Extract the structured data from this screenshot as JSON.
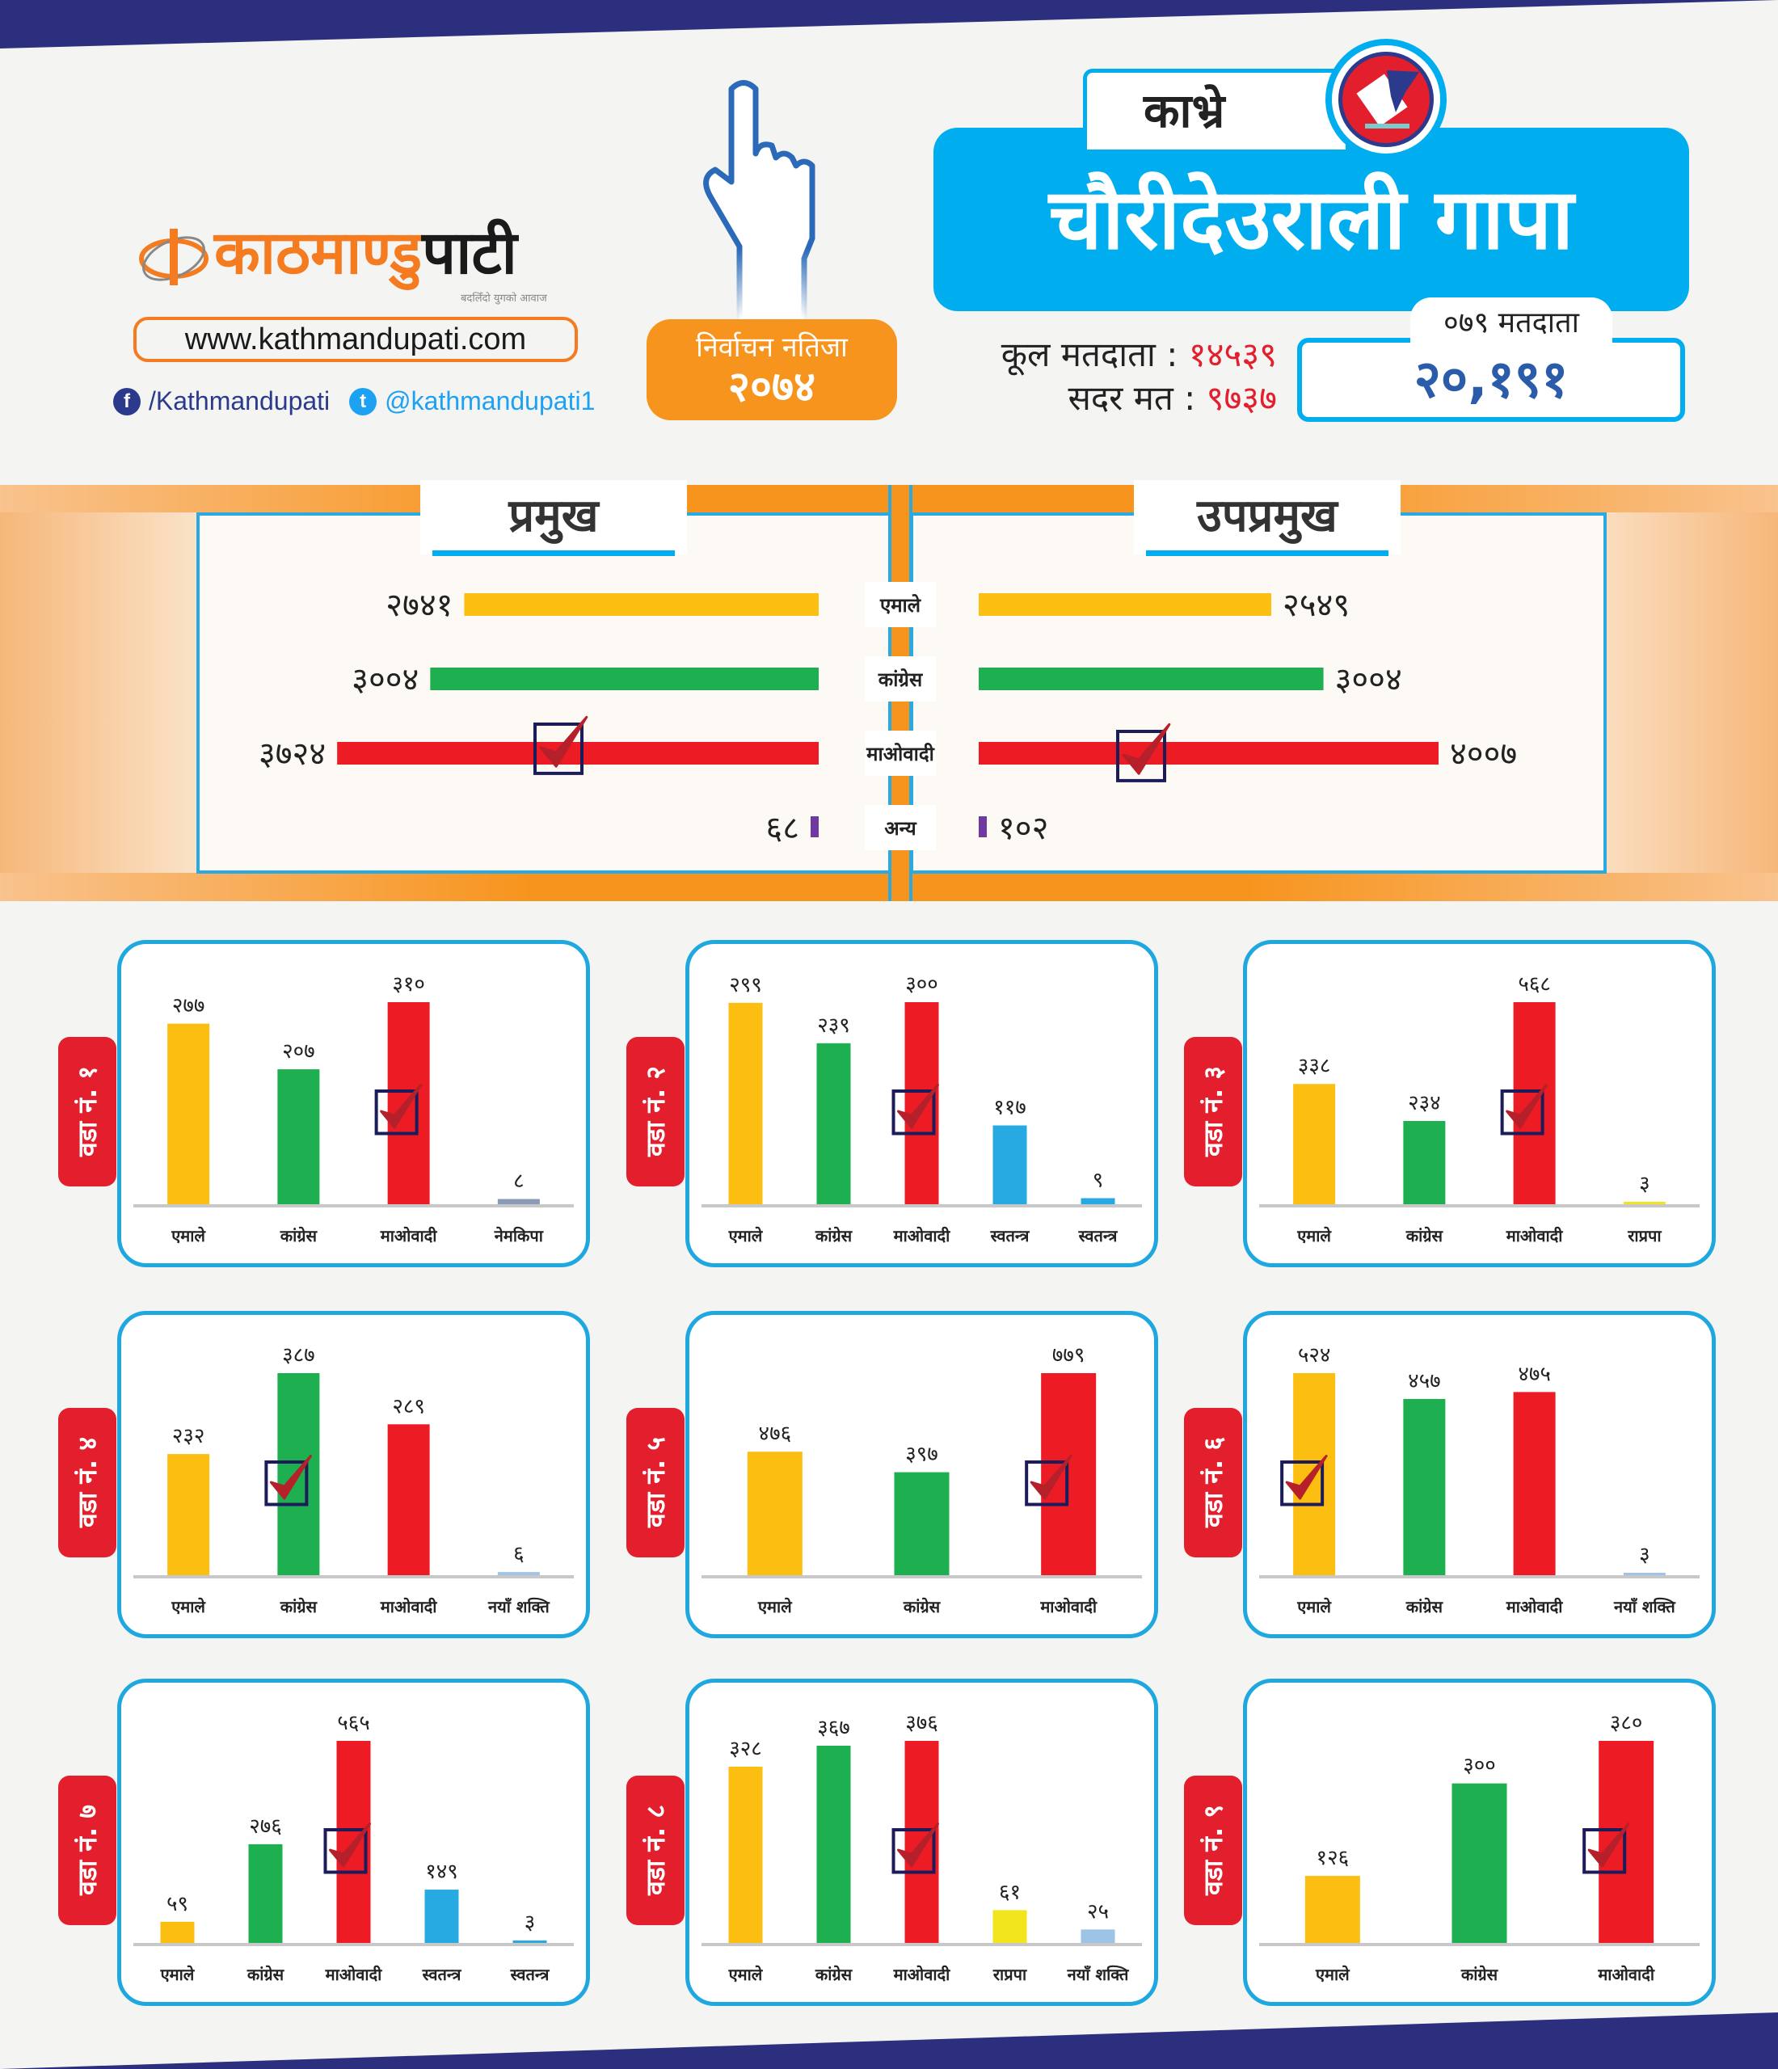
{
  "brand": {
    "logo_main": "काठमाण्डु",
    "logo_accent": "पाटी",
    "tagline": "बदलिँदो युगको आवाज",
    "url": "www.kathmandupati.com",
    "facebook": "/Kathmandupati",
    "twitter": "@kathmandupati1"
  },
  "badge": {
    "line1": "निर्वाचन नतिजा",
    "line2": "२०७४"
  },
  "header": {
    "district": "काभ्रे",
    "municipality": "चौरीदेउराली गापा"
  },
  "stats": {
    "total_label": "कूल मतदाता :",
    "total_value": "१४५३९",
    "cast_label": "सदर मत :",
    "cast_value": "९७३७",
    "voters079_label": "०७९ मतदाता",
    "voters079_value": "२०,१९१"
  },
  "colors": {
    "uml": "#FDBE12",
    "congress": "#1EB050",
    "maoist": "#ED1C24",
    "independent": "#27AAE1",
    "nemkipa": "#8A9BB5",
    "rpp": "#F2E51B",
    "naya_shakti": "#9DC3E6",
    "other": "#6E3AA0",
    "accent": "#00AEEF"
  },
  "chart_data": [
    {
      "type": "bar",
      "orientation": "horizontal",
      "title": "प्रमुख",
      "categories": [
        "एमाले",
        "कांग्रेस",
        "माओवादी",
        "अन्य"
      ],
      "values": [
        2741,
        3004,
        3724,
        68
      ],
      "winner": 2
    },
    {
      "type": "bar",
      "orientation": "horizontal",
      "title": "उपप्रमुख",
      "categories": [
        "एमाले",
        "कांग्रेस",
        "माओवादी",
        "अन्य"
      ],
      "values": [
        2549,
        3004,
        4007,
        102
      ],
      "winner": 2
    },
    {
      "type": "bar",
      "title": "वडा नं. १",
      "categories": [
        "एमाले",
        "कांग्रेस",
        "माओवादी",
        "नेमकिपा"
      ],
      "values": [
        277,
        207,
        310,
        8
      ],
      "colors": [
        "#FDBE12",
        "#1EB050",
        "#ED1C24",
        "#8A9BB5"
      ],
      "winner": 2
    },
    {
      "type": "bar",
      "title": "वडा नं. २",
      "categories": [
        "एमाले",
        "कांग्रेस",
        "माओवादी",
        "स्वतन्त्र",
        "स्वतन्त्र"
      ],
      "values": [
        299,
        239,
        300,
        117,
        9
      ],
      "colors": [
        "#FDBE12",
        "#1EB050",
        "#ED1C24",
        "#27AAE1",
        "#27AAE1"
      ],
      "winner": 2
    },
    {
      "type": "bar",
      "title": "वडा नं. ३",
      "categories": [
        "एमाले",
        "कांग्रेस",
        "माओवादी",
        "राप्रपा"
      ],
      "values": [
        338,
        234,
        568,
        3
      ],
      "colors": [
        "#FDBE12",
        "#1EB050",
        "#ED1C24",
        "#F2E51B"
      ],
      "winner": 2
    },
    {
      "type": "bar",
      "title": "वडा नं. ४",
      "categories": [
        "एमाले",
        "कांग्रेस",
        "माओवादी",
        "नयाँ शक्ति"
      ],
      "values": [
        232,
        387,
        289,
        6
      ],
      "colors": [
        "#FDBE12",
        "#1EB050",
        "#ED1C24",
        "#9DC3E6"
      ],
      "winner": 1
    },
    {
      "type": "bar",
      "title": "वडा नं. ५",
      "categories": [
        "एमाले",
        "कांग्रेस",
        "माओवादी"
      ],
      "values": [
        476,
        397,
        779
      ],
      "colors": [
        "#FDBE12",
        "#1EB050",
        "#ED1C24"
      ],
      "winner": 2
    },
    {
      "type": "bar",
      "title": "वडा नं. ६",
      "categories": [
        "एमाले",
        "कांग्रेस",
        "माओवादी",
        "नयाँ शक्ति"
      ],
      "values": [
        524,
        457,
        475,
        3
      ],
      "colors": [
        "#FDBE12",
        "#1EB050",
        "#ED1C24",
        "#9DC3E6"
      ],
      "winner": 0
    },
    {
      "type": "bar",
      "title": "वडा नं. ७",
      "categories": [
        "एमाले",
        "कांग्रेस",
        "माओवादी",
        "स्वतन्त्र",
        "स्वतन्त्र"
      ],
      "values": [
        59,
        276,
        565,
        149,
        3
      ],
      "colors": [
        "#FDBE12",
        "#1EB050",
        "#ED1C24",
        "#27AAE1",
        "#27AAE1"
      ],
      "winner": 2
    },
    {
      "type": "bar",
      "title": "वडा नं. ८",
      "categories": [
        "एमाले",
        "कांग्रेस",
        "माओवादी",
        "राप्रपा",
        "नयाँ शक्ति"
      ],
      "values": [
        328,
        367,
        376,
        61,
        25
      ],
      "colors": [
        "#FDBE12",
        "#1EB050",
        "#ED1C24",
        "#F2E51B",
        "#9DC3E6"
      ],
      "winner": 2
    },
    {
      "type": "bar",
      "title": "वडा नं. ९",
      "categories": [
        "एमाले",
        "कांग्रेस",
        "माओवादी"
      ],
      "values": [
        126,
        300,
        380
      ],
      "colors": [
        "#FDBE12",
        "#1EB050",
        "#ED1C24"
      ],
      "winner": 2
    }
  ]
}
